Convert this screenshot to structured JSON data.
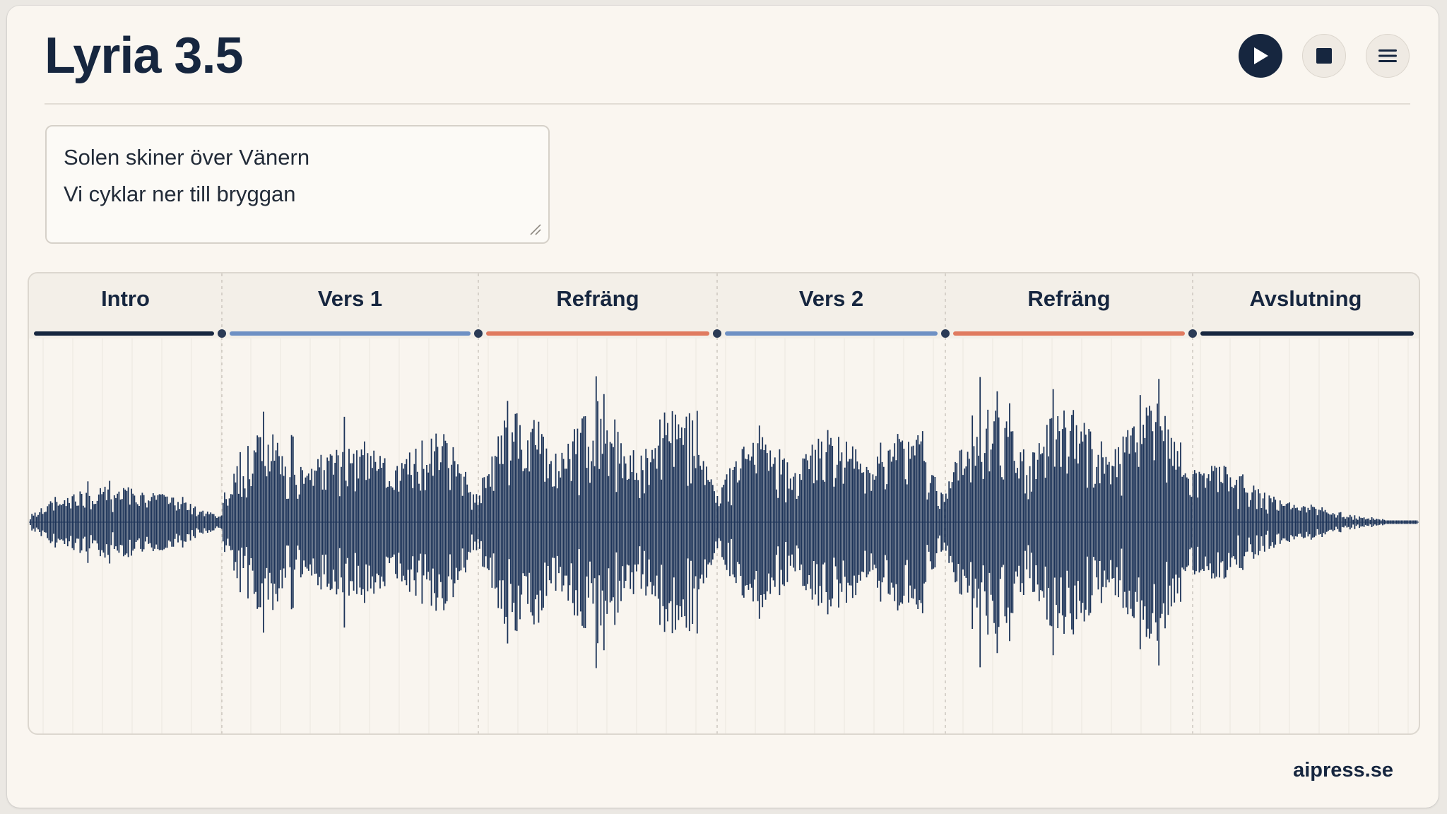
{
  "app": {
    "title": "Lyria 3.5",
    "footer": "aipress.se"
  },
  "controls": [
    {
      "name": "play",
      "icon": "play-icon"
    },
    {
      "name": "stop",
      "icon": "stop-icon"
    },
    {
      "name": "menu",
      "icon": "menu-icon"
    }
  ],
  "lyrics": {
    "lines": [
      "Solen skiner över Vänern",
      "Vi cyklar ner till bryggan"
    ]
  },
  "timeline": {
    "sections": [
      {
        "label": "Intro",
        "color": "#16263f",
        "label_color": "#16263f"
      },
      {
        "label": "Vers 1",
        "color": "#6e90c4",
        "label_color": "#16263f"
      },
      {
        "label": "Refräng",
        "color": "#e07a5f",
        "label_color": "#16263f"
      },
      {
        "label": "Vers 2",
        "color": "#6e90c4",
        "label_color": "#16263f"
      },
      {
        "label": "Refräng",
        "color": "#e07a5f",
        "label_color": "#16263f"
      },
      {
        "label": "Avslutning",
        "color": "#16263f",
        "label_color": "#16263f"
      }
    ],
    "waveform_color": "#1c3358"
  },
  "colors": {
    "accent": "#16263f",
    "verse": "#6e90c4",
    "chorus": "#e07a5f",
    "background": "#faf6f0"
  }
}
